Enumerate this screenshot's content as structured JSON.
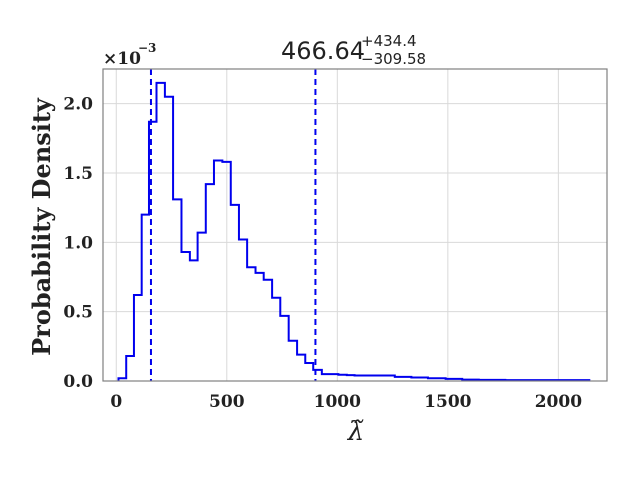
{
  "chart_data": {
    "type": "step-histogram",
    "title": {
      "median": "466.64",
      "upper": "+434.4",
      "lower": "−309.58"
    },
    "xlabel": "λ̃",
    "ylabel": "Probability Density",
    "y_multiplier": {
      "base": "×10",
      "exponent": "−3"
    },
    "xlim": [
      -60,
      2220
    ],
    "ylim": [
      0,
      2.25
    ],
    "xticks": [
      0,
      500,
      1000,
      1500,
      2000
    ],
    "xtick_labels": [
      "0",
      "500",
      "1000",
      "1500",
      "2000"
    ],
    "yticks": [
      0.0,
      0.5,
      1.0,
      1.5,
      2.0
    ],
    "ytick_labels": [
      "0.0",
      "0.5",
      "1.0",
      "1.5",
      "2.0"
    ],
    "grid": true,
    "line_color": "#0000ee",
    "quantile_lines": [
      157,
      901
    ],
    "bin_edges": [
      10,
      45,
      80,
      115,
      148,
      182,
      220,
      257,
      295,
      333,
      368,
      405,
      442,
      480,
      518,
      555,
      592,
      630,
      667,
      705,
      742,
      780,
      818,
      855,
      891,
      930,
      967,
      1005,
      1043,
      1078,
      1115,
      1185,
      1260,
      1335,
      1410,
      1490,
      1565,
      1640,
      1760,
      2140
    ],
    "densities": [
      0.02,
      0.18,
      0.62,
      1.2,
      1.87,
      2.15,
      2.05,
      1.31,
      0.93,
      0.87,
      1.07,
      1.42,
      1.59,
      1.58,
      1.27,
      1.02,
      0.82,
      0.78,
      0.73,
      0.6,
      0.47,
      0.29,
      0.19,
      0.13,
      0.08,
      0.05,
      0.05,
      0.045,
      0.042,
      0.04,
      0.04,
      0.04,
      0.03,
      0.025,
      0.02,
      0.015,
      0.01,
      0.008,
      0.006
    ]
  }
}
